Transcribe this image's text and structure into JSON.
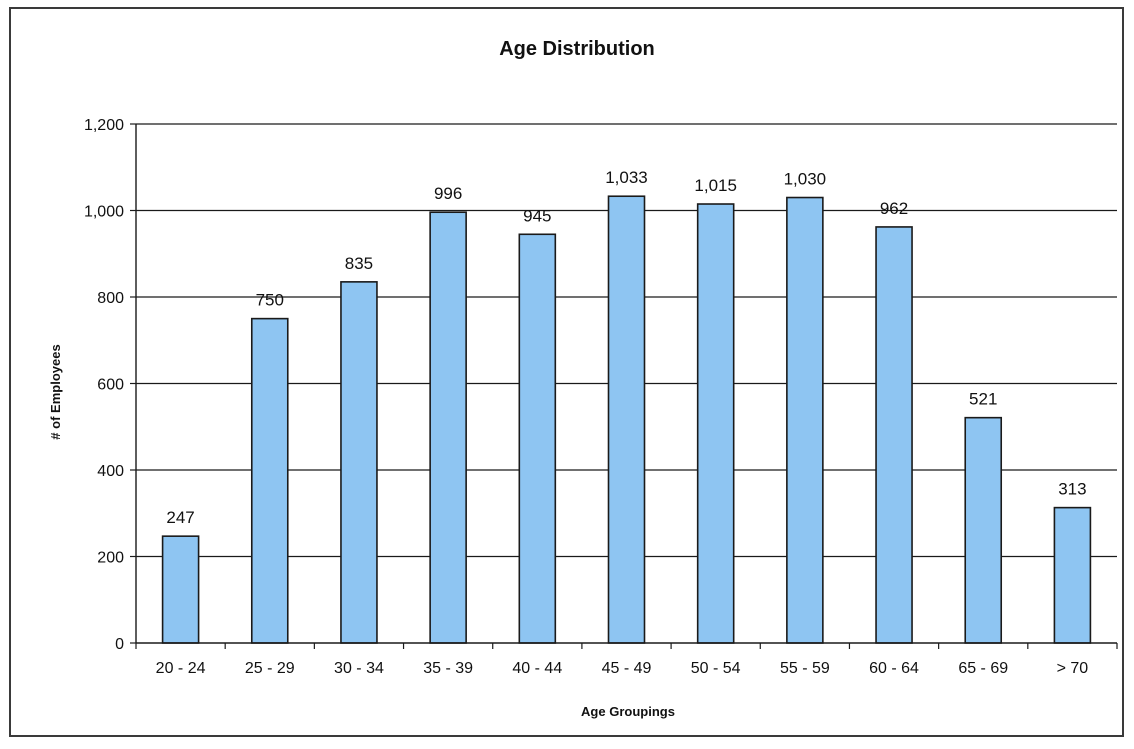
{
  "chart_data": {
    "type": "bar",
    "title": "Age Distribution",
    "xlabel": "Age Groupings",
    "ylabel": "# of Employees",
    "categories": [
      "20 - 24",
      "25 - 29",
      "30 - 34",
      "35 - 39",
      "40 - 44",
      "45 - 49",
      "50 - 54",
      "55 - 59",
      "60 - 64",
      "65 - 69",
      "> 70"
    ],
    "values": [
      247,
      750,
      835,
      996,
      945,
      1033,
      1015,
      1030,
      962,
      521,
      313
    ],
    "data_labels": [
      "247",
      "750",
      "835",
      "996",
      "945",
      "1,033",
      "1,015",
      "1,030",
      "962",
      "521",
      "313"
    ],
    "ylim": [
      0,
      1200
    ],
    "yticks": [
      0,
      200,
      400,
      600,
      800,
      1000,
      1200
    ],
    "ytick_labels": [
      "0",
      "200",
      "400",
      "600",
      "800",
      "1,000",
      "1,200"
    ],
    "grid": true,
    "legend": "none",
    "colors": {
      "bar_fill": "#8ec5f2",
      "bar_stroke": "#1a1a1a",
      "gridline": "#1a1a1a",
      "axis": "#1a1a1a"
    }
  }
}
